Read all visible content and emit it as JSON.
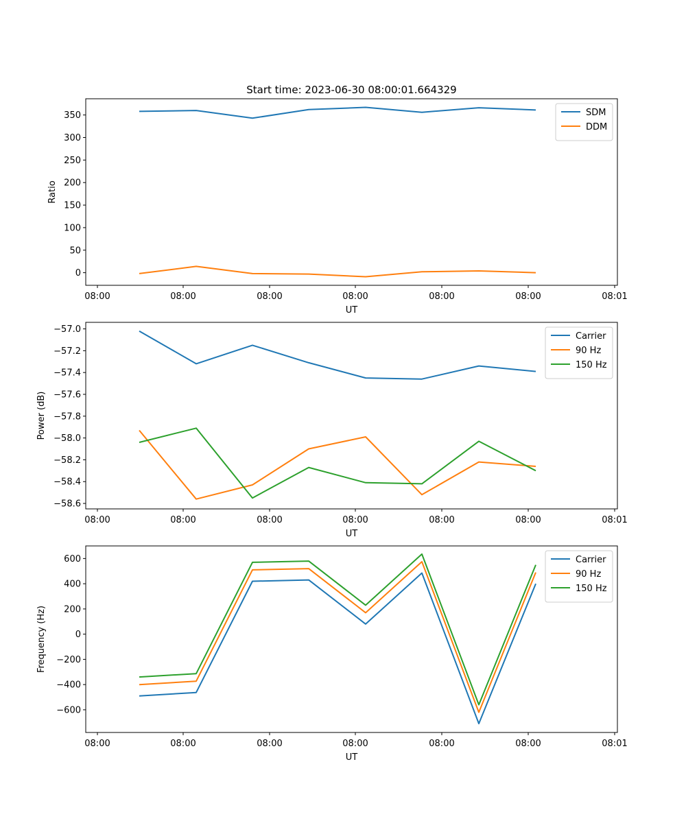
{
  "chart_data": [
    {
      "type": "line",
      "title": "Start time: 2023-06-30 08:00:01.664329",
      "xlabel": "UT",
      "ylabel": "Ratio",
      "x_tick_labels": [
        "08:00",
        "08:00",
        "08:00",
        "08:00",
        "08:00",
        "08:00",
        "08:01"
      ],
      "yticks": [
        0,
        50,
        100,
        150,
        200,
        250,
        300,
        350
      ],
      "ylim": [
        -28,
        386
      ],
      "legend": "top-right",
      "grid": false,
      "series": [
        {
          "name": "SDM",
          "color": "#1f77b4",
          "values": [
            358,
            360,
            343,
            362,
            367,
            356,
            366,
            361
          ]
        },
        {
          "name": "DDM",
          "color": "#ff7f0e",
          "values": [
            -2,
            14,
            -2,
            -3,
            -9,
            2,
            4,
            0
          ]
        }
      ]
    },
    {
      "type": "line",
      "title": "",
      "xlabel": "UT",
      "ylabel": "Power (dB)",
      "x_tick_labels": [
        "08:00",
        "08:00",
        "08:00",
        "08:00",
        "08:00",
        "08:00",
        "08:01"
      ],
      "yticks": [
        -58.6,
        -58.4,
        -58.2,
        -58.0,
        -57.8,
        -57.6,
        -57.4,
        -57.2,
        -57.0
      ],
      "ylim": [
        -58.65,
        -56.94
      ],
      "legend": "top-right",
      "grid": false,
      "series": [
        {
          "name": "Carrier",
          "color": "#1f77b4",
          "values": [
            -57.02,
            -57.32,
            -57.15,
            -57.31,
            -57.45,
            -57.46,
            -57.34,
            -57.39
          ]
        },
        {
          "name": "90 Hz",
          "color": "#ff7f0e",
          "values": [
            -57.93,
            -58.56,
            -58.43,
            -58.1,
            -57.99,
            -58.52,
            -58.22,
            -58.26
          ]
        },
        {
          "name": "150 Hz",
          "color": "#2ca02c",
          "values": [
            -58.04,
            -57.91,
            -58.55,
            -58.27,
            -58.41,
            -58.42,
            -58.03,
            -58.3
          ]
        }
      ]
    },
    {
      "type": "line",
      "title": "",
      "xlabel": "UT",
      "ylabel": "Frequency (Hz)",
      "x_tick_labels": [
        "08:00",
        "08:00",
        "08:00",
        "08:00",
        "08:00",
        "08:00",
        "08:01"
      ],
      "yticks": [
        -600,
        -400,
        -200,
        0,
        200,
        400,
        600
      ],
      "ylim": [
        -780,
        700
      ],
      "legend": "top-right",
      "grid": false,
      "series": [
        {
          "name": "Carrier",
          "color": "#1f77b4",
          "values": [
            -490,
            -463,
            420,
            430,
            80,
            485,
            -710,
            400
          ]
        },
        {
          "name": "90 Hz",
          "color": "#ff7f0e",
          "values": [
            -400,
            -373,
            510,
            520,
            170,
            575,
            -620,
            490
          ]
        },
        {
          "name": "150 Hz",
          "color": "#2ca02c",
          "values": [
            -340,
            -313,
            570,
            580,
            230,
            635,
            -560,
            550
          ]
        }
      ]
    }
  ]
}
